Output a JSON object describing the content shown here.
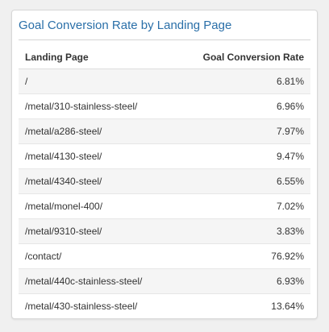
{
  "widget": {
    "title": "Goal Conversion Rate by Landing Page"
  },
  "table": {
    "columns": [
      "Landing Page",
      "Goal Conversion Rate"
    ],
    "rows": [
      {
        "page": "/",
        "rate": "6.81%"
      },
      {
        "page": "/metal/310-stainless-steel/",
        "rate": "6.96%"
      },
      {
        "page": "/metal/a286-steel/",
        "rate": "7.97%"
      },
      {
        "page": "/metal/4130-steel/",
        "rate": "9.47%"
      },
      {
        "page": "/metal/4340-steel/",
        "rate": "6.55%"
      },
      {
        "page": "/metal/monel-400/",
        "rate": "7.02%"
      },
      {
        "page": "/metal/9310-steel/",
        "rate": "3.83%"
      },
      {
        "page": "/contact/",
        "rate": "76.92%"
      },
      {
        "page": "/metal/440c-stainless-steel/",
        "rate": "6.93%"
      },
      {
        "page": "/metal/430-stainless-steel/",
        "rate": "13.64%"
      }
    ]
  },
  "colors": {
    "title": "#2a6fa8",
    "row_alt": "#f5f5f5",
    "text": "#333333"
  }
}
